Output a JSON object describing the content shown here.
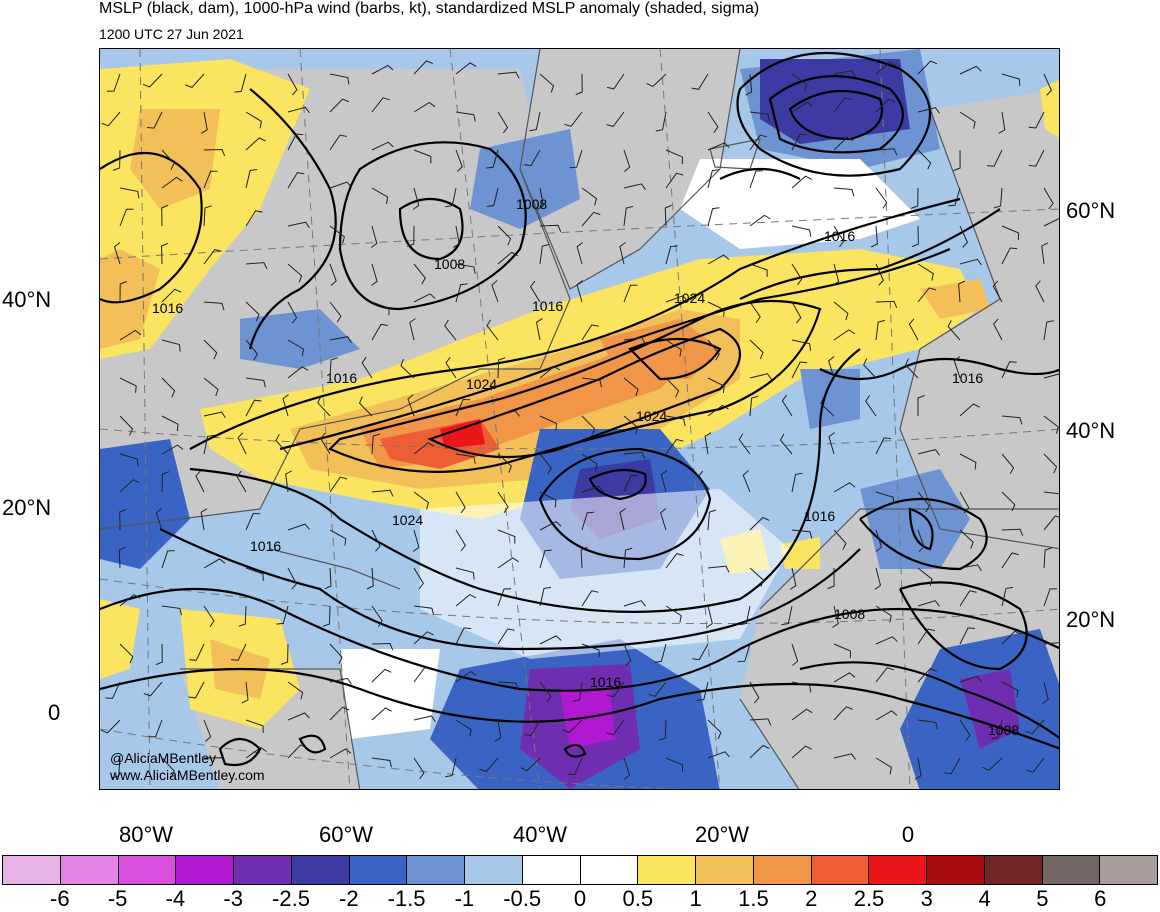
{
  "header": {
    "title": "MSLP (black, dam), 1000-hPa wind (barbs, kt), standardized MSLP anomaly (shaded, sigma)",
    "valid_time": "1200 UTC 27 Jun 2021"
  },
  "axes": {
    "left_lat_labels": [
      "40°N",
      "20°N",
      "0"
    ],
    "right_lat_labels": [
      "60°N",
      "40°N",
      "20°N"
    ],
    "lon_labels": [
      "80°W",
      "60°W",
      "40°W",
      "20°W",
      "0"
    ]
  },
  "contour_labels": [
    "1016",
    "1008",
    "1008",
    "1016",
    "1016",
    "1024",
    "1016",
    "1024",
    "1024",
    "1024",
    "1016",
    "1016",
    "1016",
    "1008",
    "1016",
    "1008"
  ],
  "credits": {
    "handle": "@AliciaMBentley",
    "website": "www.AliciaMBentley.com"
  },
  "colorbar": {
    "colors": [
      "#e8b4e8",
      "#e383e6",
      "#d94fdd",
      "#b018d2",
      "#6f2eb0",
      "#3c3ba4",
      "#3a64c4",
      "#6e93d3",
      "#a7c8e9",
      "#ffffff",
      "#ffffff",
      "#fae460",
      "#f3bf58",
      "#f19549",
      "#ee5e34",
      "#ea161a",
      "#a80c0f",
      "#6f2624",
      "#746664",
      "#a99c9a"
    ],
    "ticks": [
      "-6",
      "-5",
      "-4",
      "-3",
      "-2.5",
      "-2",
      "-1.5",
      "-1",
      "-0.5",
      "0",
      "0.5",
      "1",
      "1.5",
      "2",
      "2.5",
      "3",
      "4",
      "5",
      "6"
    ]
  },
  "palette": {
    "land": "#c8c8c8",
    "ocean": "#ffffff",
    "contour": "#000000",
    "coast": "#555555"
  }
}
